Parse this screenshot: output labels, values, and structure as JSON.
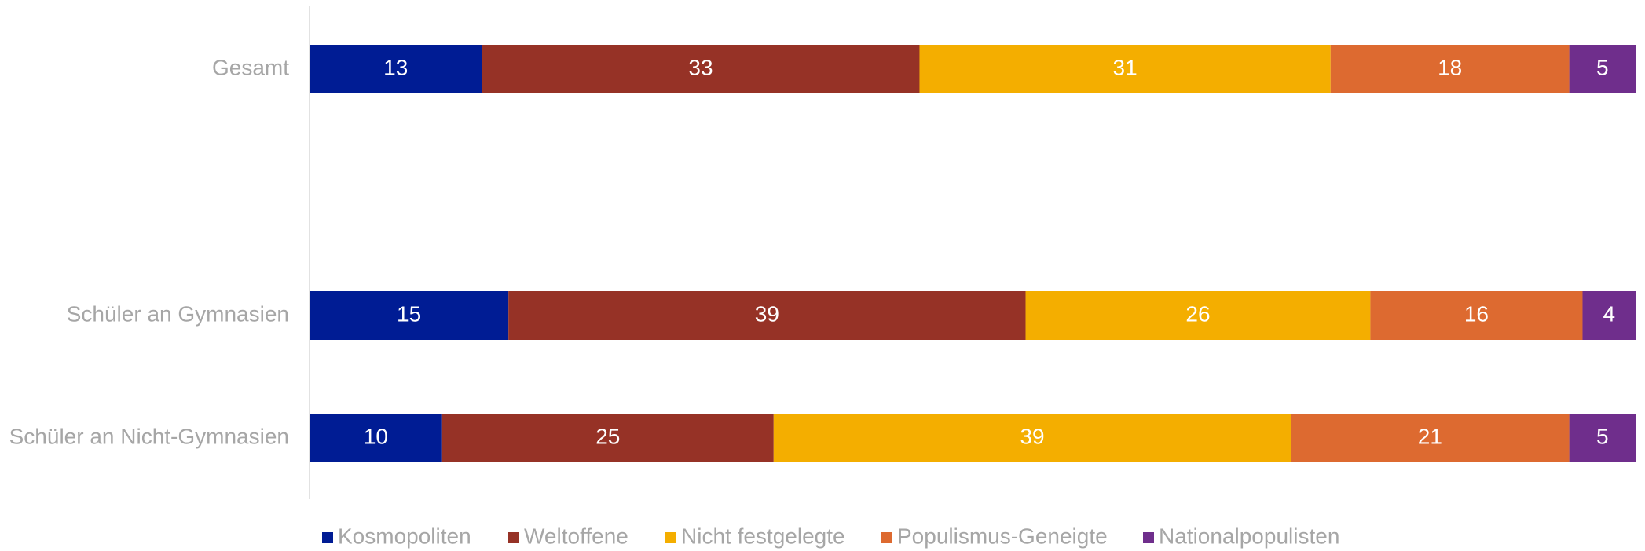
{
  "chart_data": {
    "type": "bar",
    "orientation": "horizontal",
    "stacked": true,
    "categories": [
      "Gesamt",
      "",
      "Schüler an Gymnasien",
      "Schüler an Nicht-Gymnasien"
    ],
    "series": [
      {
        "name": "Kosmopoliten",
        "color": "#001c94",
        "values": [
          13,
          null,
          15,
          10
        ]
      },
      {
        "name": "Weltoffene",
        "color": "#963226",
        "values": [
          33,
          null,
          39,
          25
        ]
      },
      {
        "name": "Nicht festgelegte",
        "color": "#f4ae00",
        "values": [
          31,
          null,
          26,
          39
        ]
      },
      {
        "name": "Populismus-Geneigte",
        "color": "#dd6a30",
        "values": [
          18,
          null,
          16,
          21
        ]
      },
      {
        "name": "Nationalpopulisten",
        "color": "#6f2e8c",
        "values": [
          5,
          null,
          4,
          5
        ]
      }
    ],
    "xlim": [
      0,
      100
    ],
    "grid": false,
    "legend_position": "bottom",
    "axis_line_color": "#d9d9d9"
  }
}
